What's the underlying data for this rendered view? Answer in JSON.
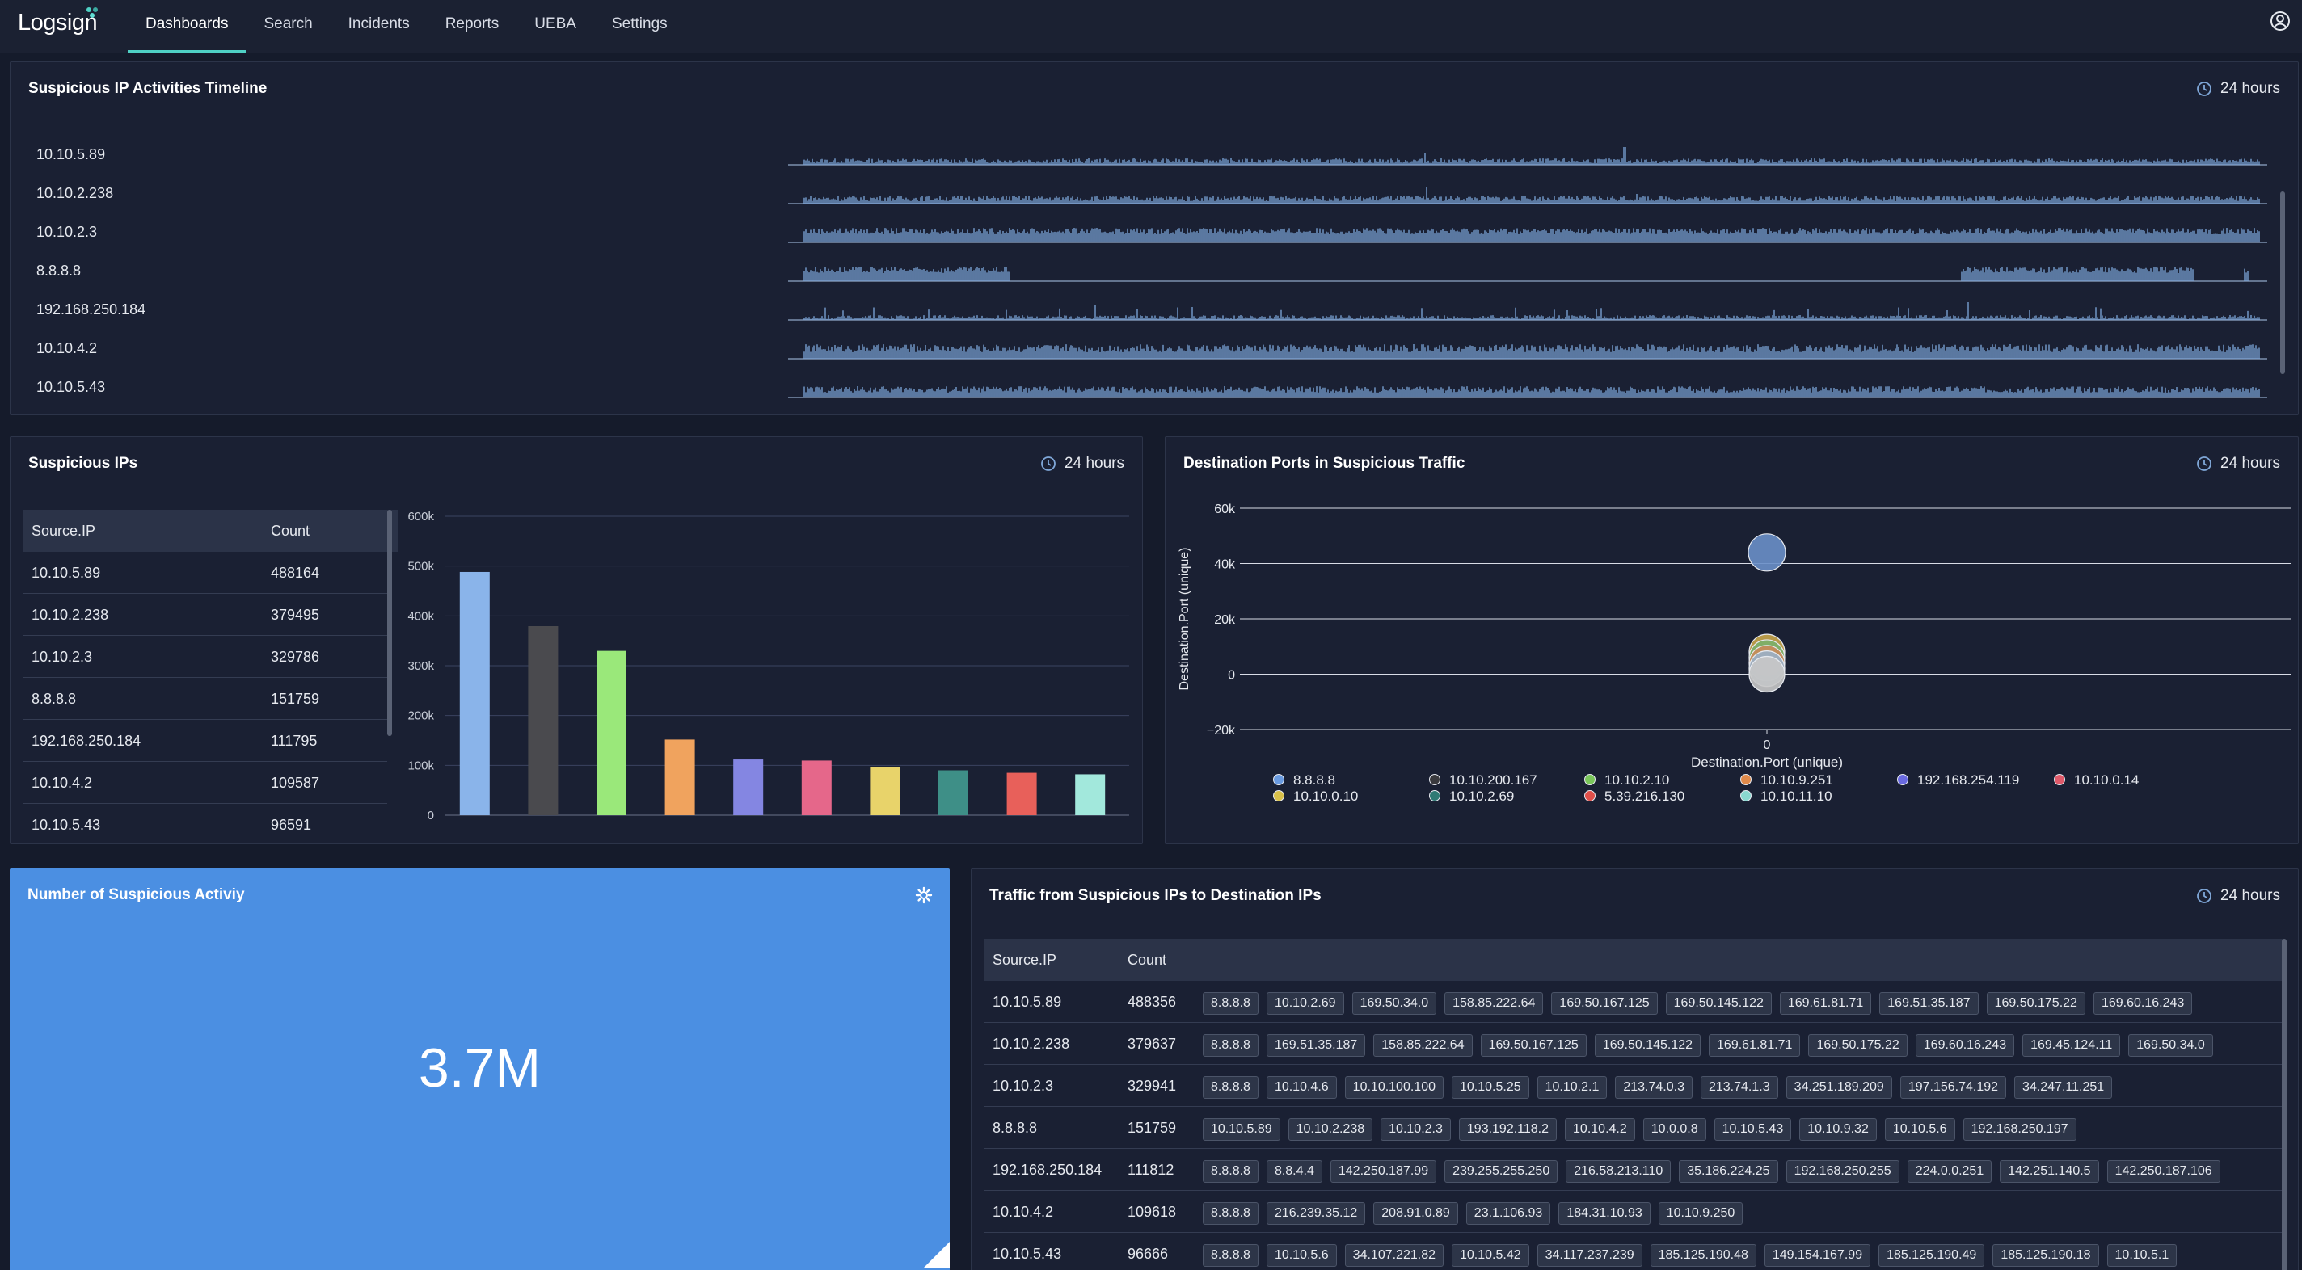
{
  "brand": {
    "name": "Logsign"
  },
  "nav": [
    {
      "label": "Dashboards",
      "active": true
    },
    {
      "label": "Search"
    },
    {
      "label": "Incidents"
    },
    {
      "label": "Reports"
    },
    {
      "label": "UEBA"
    },
    {
      "label": "Settings"
    }
  ],
  "timeline": {
    "title": "Suspicious IP Activities Timeline",
    "range": "24 hours",
    "rows": [
      "10.10.5.89",
      "10.10.2.238",
      "10.10.2.3",
      "8.8.8.8",
      "192.168.250.184",
      "10.10.4.2",
      "10.10.5.43"
    ]
  },
  "suspicious_ips": {
    "title": "Suspicious IPs",
    "range": "24 hours",
    "columns": [
      "Source.IP",
      "Count"
    ],
    "rows": [
      [
        "10.10.5.89",
        "488164"
      ],
      [
        "10.10.2.238",
        "379495"
      ],
      [
        "10.10.2.3",
        "329786"
      ],
      [
        "8.8.8.8",
        "151759"
      ],
      [
        "192.168.250.184",
        "111795"
      ],
      [
        "10.10.4.2",
        "109587"
      ],
      [
        "10.10.5.43",
        "96591"
      ]
    ]
  },
  "chart_data": [
    {
      "type": "bar",
      "values": [
        488164,
        379495,
        329786,
        151759,
        111795,
        109587,
        96591,
        90000,
        85000,
        82000
      ],
      "colors": [
        "#8ab4ea",
        "#4a4a4e",
        "#9ae87a",
        "#f0a35e",
        "#8486e2",
        "#e5678a",
        "#e8d36a",
        "#3e8f87",
        "#e8605a",
        "#a2e8dc"
      ],
      "yticks": [
        "0",
        "100k",
        "200k",
        "300k",
        "400k",
        "500k",
        "600k"
      ],
      "ylim": [
        0,
        600000
      ]
    },
    {
      "type": "scatter",
      "title": "Destination Ports in Suspicious Traffic",
      "xlabel": "Destination.Port (unique)",
      "ylabel": "Destination.Port (unique)",
      "xticks": [
        "0"
      ],
      "yticks": [
        "60k",
        "40k",
        "20k",
        "0",
        "−20k"
      ],
      "ylim": [
        -20000,
        60000
      ],
      "points": [
        {
          "x": 0,
          "y": 44000,
          "color": "#6a8fc8"
        },
        {
          "x": 0,
          "y": 8000,
          "color": "#c9a64a"
        },
        {
          "x": 0,
          "y": 6000,
          "color": "#7ab06a"
        },
        {
          "x": 0,
          "y": 4000,
          "color": "#c98a5a"
        },
        {
          "x": 0,
          "y": 2000,
          "color": "#9ab0c8"
        },
        {
          "x": 0,
          "y": 0,
          "color": "#c8c8c8"
        }
      ],
      "legend": [
        {
          "label": "8.8.8.8",
          "color": "#6a9be0"
        },
        {
          "label": "10.10.200.167",
          "color": "#3a3a3e"
        },
        {
          "label": "10.10.2.10",
          "color": "#7ac65a"
        },
        {
          "label": "10.10.9.251",
          "color": "#e08a4a"
        },
        {
          "label": "192.168.254.119",
          "color": "#6a6ae0"
        },
        {
          "label": "10.10.0.14",
          "color": "#e05a6a"
        },
        {
          "label": "10.10.0.10",
          "color": "#d8c04a"
        },
        {
          "label": "10.10.2.69",
          "color": "#2e7a74"
        },
        {
          "label": "5.39.216.130",
          "color": "#e0504a"
        },
        {
          "label": "10.10.11.10",
          "color": "#8ad8d0"
        }
      ]
    }
  ],
  "metric": {
    "title": "Number of Suspicious Activiy",
    "value": "3.7M"
  },
  "traffic": {
    "title": "Traffic from Suspicious IPs to Destination IPs",
    "range": "24 hours",
    "columns": [
      "Source.IP",
      "Count"
    ],
    "rows": [
      {
        "ip": "10.10.5.89",
        "count": "488356",
        "dest": [
          "8.8.8.8",
          "10.10.2.69",
          "169.50.34.0",
          "158.85.222.64",
          "169.50.167.125",
          "169.50.145.122",
          "169.61.81.71",
          "169.51.35.187",
          "169.50.175.22",
          "169.60.16.243"
        ]
      },
      {
        "ip": "10.10.2.238",
        "count": "379637",
        "dest": [
          "8.8.8.8",
          "169.51.35.187",
          "158.85.222.64",
          "169.50.167.125",
          "169.50.145.122",
          "169.61.81.71",
          "169.50.175.22",
          "169.60.16.243",
          "169.45.124.11",
          "169.50.34.0"
        ]
      },
      {
        "ip": "10.10.2.3",
        "count": "329941",
        "dest": [
          "8.8.8.8",
          "10.10.4.6",
          "10.10.100.100",
          "10.10.5.25",
          "10.10.2.1",
          "213.74.0.3",
          "213.74.1.3",
          "34.251.189.209",
          "197.156.74.192",
          "34.247.11.251"
        ]
      },
      {
        "ip": "8.8.8.8",
        "count": "151759",
        "dest": [
          "10.10.5.89",
          "10.10.2.238",
          "10.10.2.3",
          "193.192.118.2",
          "10.10.4.2",
          "10.0.0.8",
          "10.10.5.43",
          "10.10.9.32",
          "10.10.5.6",
          "192.168.250.197"
        ]
      },
      {
        "ip": "192.168.250.184",
        "count": "111812",
        "dest": [
          "8.8.8.8",
          "8.8.4.4",
          "142.250.187.99",
          "239.255.255.250",
          "216.58.213.110",
          "35.186.224.25",
          "192.168.250.255",
          "224.0.0.251",
          "142.251.140.5",
          "142.250.187.106"
        ]
      },
      {
        "ip": "10.10.4.2",
        "count": "109618",
        "dest": [
          "8.8.8.8",
          "216.239.35.12",
          "208.91.0.89",
          "23.1.106.93",
          "184.31.10.93",
          "10.10.9.250"
        ]
      },
      {
        "ip": "10.10.5.43",
        "count": "96666",
        "dest": [
          "8.8.8.8",
          "10.10.5.6",
          "34.107.221.82",
          "10.10.5.42",
          "34.117.237.239",
          "185.125.190.48",
          "149.154.167.99",
          "185.125.190.49",
          "185.125.190.18",
          "10.10.5.1"
        ]
      }
    ]
  }
}
